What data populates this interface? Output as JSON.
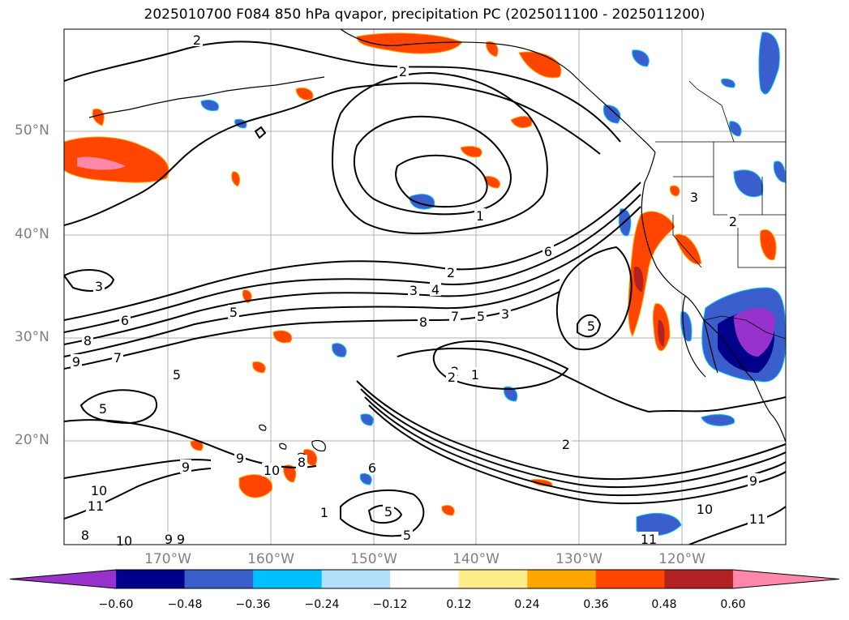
{
  "title": "2025010700 F084 850 hPa qvapor, precipitation PC (2025011100 - 2025011200)",
  "latitude_labels": [
    "50°N",
    "40°N",
    "30°N",
    "20°N"
  ],
  "longitude_labels": [
    "170°W",
    "160°W",
    "150°W",
    "140°W",
    "130°W",
    "120°W"
  ],
  "colorbar": {
    "tick_labels": [
      "−0.60",
      "−0.48",
      "−0.36",
      "−0.24",
      "−0.12",
      "0.12",
      "0.24",
      "0.36",
      "0.48",
      "0.60"
    ],
    "colors": [
      "#9932cc",
      "#00008b",
      "#3a5fcd",
      "#00bfff",
      "#b0e0fa",
      "#ffffff",
      "#ffec8b",
      "#ffa500",
      "#ff4500",
      "#b22222",
      "#ff88aa"
    ]
  },
  "contour_labels": [
    "2",
    "2",
    "1",
    "1",
    "2",
    "3",
    "4",
    "8",
    "7",
    "5",
    "3",
    "6",
    "6",
    "5",
    "8",
    "9",
    "7",
    "5",
    "5",
    "3",
    "3",
    "2",
    "2",
    "2",
    "1",
    "9",
    "9",
    "10",
    "8",
    "10",
    "11",
    "8",
    "10",
    "9",
    "9",
    "6",
    "5",
    "5",
    "9",
    "10",
    "11",
    "11",
    "5",
    "2"
  ]
}
